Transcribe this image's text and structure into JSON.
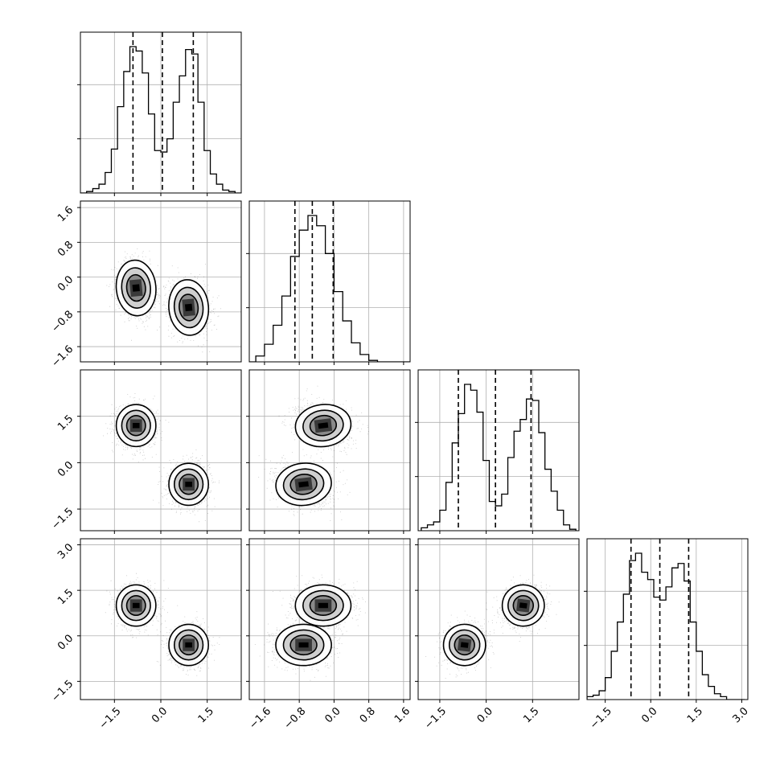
{
  "chart_data": {
    "type": "corner",
    "n_params": 4,
    "ticks": {
      "x": [
        [
          -1.5,
          0.0,
          1.5
        ],
        [
          -1.6,
          -0.8,
          0.0,
          0.8,
          1.6
        ],
        [
          -1.5,
          0.0,
          1.5
        ],
        [
          -1.5,
          0.0,
          1.5,
          3.0
        ]
      ],
      "y": [
        null,
        [
          -1.6,
          -0.8,
          0.0,
          0.8,
          1.6
        ],
        [
          -1.5,
          0.0,
          1.5
        ],
        [
          -1.5,
          0.0,
          1.5,
          3.0
        ]
      ]
    },
    "tick_labels": {
      "x": [
        [
          "−1.5",
          "0.0",
          "1.5"
        ],
        [
          "−1.6",
          "−0.8",
          "0.0",
          "0.8",
          "1.6"
        ],
        [
          "−1.5",
          "0.0",
          "1.5"
        ],
        [
          "−1.5",
          "0.0",
          "1.5",
          "3.0"
        ]
      ],
      "y": [
        [],
        [
          "−1.6",
          "−0.8",
          "0.0",
          "0.8",
          "1.6"
        ],
        [
          "−1.5",
          "0.0",
          "1.5"
        ],
        [
          "−1.5",
          "0.0",
          "1.5",
          "3.0"
        ]
      ]
    },
    "ranges": [
      [
        -2.6,
        2.6
      ],
      [
        -1.95,
        1.75
      ],
      [
        -2.2,
        3.0
      ],
      [
        -2.1,
        3.2
      ]
    ],
    "quantiles": [
      [
        -0.9,
        0.05,
        1.05
      ],
      [
        -0.9,
        -0.5,
        -0.02
      ],
      [
        -0.9,
        0.3,
        1.45
      ],
      [
        -0.65,
        0.3,
        1.25
      ]
    ],
    "histograms": [
      {
        "bin_centers": [
          -2.5,
          -2.3,
          -2.1,
          -1.9,
          -1.7,
          -1.5,
          -1.3,
          -1.1,
          -0.9,
          -0.7,
          -0.5,
          -0.3,
          -0.1,
          0.1,
          0.3,
          0.5,
          0.7,
          0.9,
          1.1,
          1.3,
          1.5,
          1.7,
          1.9,
          2.1,
          2.3,
          2.5
        ],
        "counts": [
          0,
          1,
          3,
          6,
          14,
          30,
          59,
          83,
          100,
          97,
          82,
          54,
          29,
          28,
          37,
          62,
          80,
          98,
          95,
          62,
          29,
          13,
          6,
          2,
          1,
          0
        ]
      },
      {
        "bin_centers": [
          -1.9,
          -1.7,
          -1.5,
          -1.3,
          -1.1,
          -0.9,
          -0.7,
          -0.5,
          -0.3,
          -0.1,
          0.1,
          0.3,
          0.5,
          0.7,
          0.9,
          1.1,
          1.3,
          1.5,
          1.7
        ],
        "counts": [
          0,
          4,
          12,
          25,
          45,
          72,
          90,
          100,
          93,
          74,
          48,
          28,
          13,
          5,
          1,
          0,
          0,
          0,
          0
        ]
      },
      {
        "bin_centers": [
          -2.0,
          -1.8,
          -1.6,
          -1.4,
          -1.2,
          -1.0,
          -0.8,
          -0.6,
          -0.4,
          -0.2,
          0.0,
          0.2,
          0.4,
          0.6,
          0.8,
          1.0,
          1.2,
          1.4,
          1.6,
          1.8,
          2.0,
          2.2,
          2.4,
          2.6,
          2.8
        ],
        "counts": [
          2,
          4,
          6,
          14,
          33,
          60,
          80,
          100,
          96,
          81,
          48,
          20,
          17,
          25,
          50,
          68,
          76,
          90,
          89,
          67,
          42,
          27,
          14,
          4,
          1
        ]
      },
      {
        "bin_centers": [
          -2.0,
          -1.8,
          -1.6,
          -1.4,
          -1.2,
          -1.0,
          -0.8,
          -0.6,
          -0.4,
          -0.2,
          0.0,
          0.2,
          0.4,
          0.6,
          0.8,
          1.0,
          1.2,
          1.4,
          1.6,
          1.8,
          2.0,
          2.2,
          2.4,
          2.6,
          2.8,
          3.0
        ],
        "counts": [
          2,
          3,
          6,
          15,
          33,
          53,
          72,
          95,
          100,
          87,
          82,
          70,
          68,
          77,
          90,
          93,
          81,
          53,
          33,
          17,
          9,
          4,
          2,
          0,
          0,
          0
        ]
      }
    ],
    "modes": [
      [
        -0.8,
        -0.25,
        1.2,
        1.0
      ],
      [
        0.9,
        -0.7,
        -0.7,
        -0.3
      ]
    ],
    "mode_widths": [
      0.32,
      0.32,
      0.34,
      0.34
    ],
    "correlations": {
      "1-0": -0.15,
      "2-1": -0.2,
      "3-2": 0.2
    },
    "grid": true,
    "points_per_panel": 2400
  }
}
